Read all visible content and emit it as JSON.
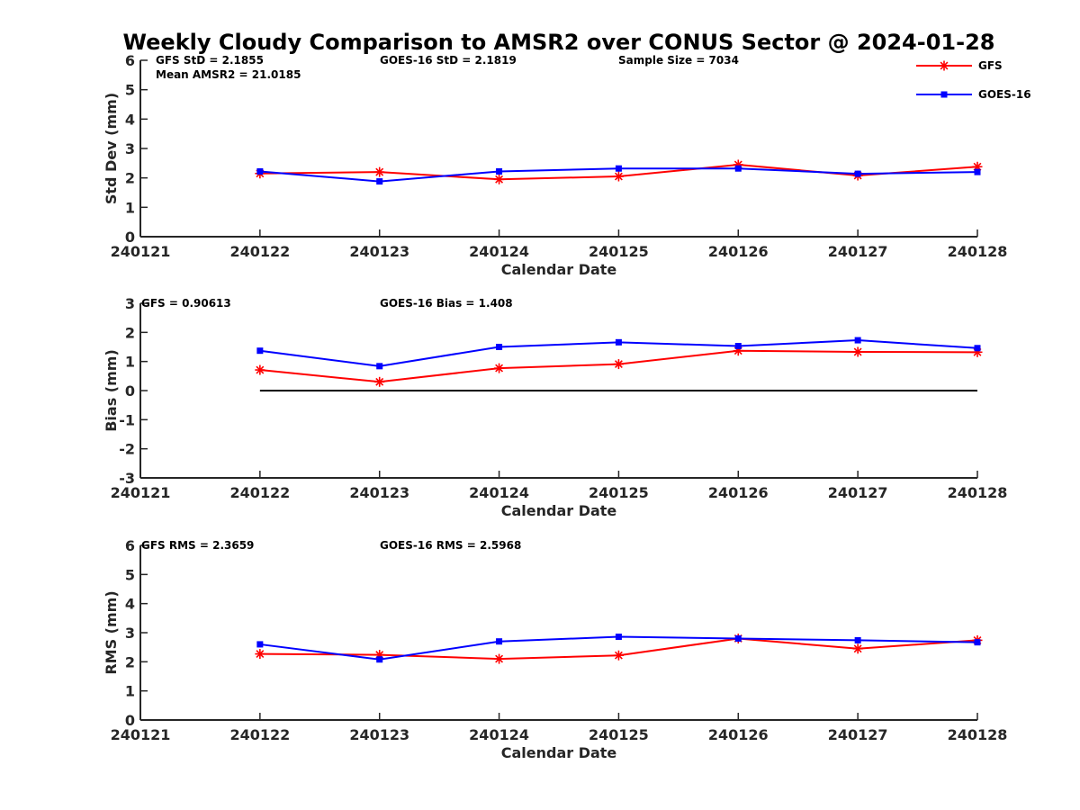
{
  "title": "Weekly Cloudy Comparison to AMSR2 over CONUS Sector @ 2024-01-28",
  "legend": {
    "placement": "top-right",
    "entries": [
      {
        "label": "GFS",
        "color": "#ff0000",
        "marker": "asterisk"
      },
      {
        "label": "GOES-16",
        "color": "#0000ff",
        "marker": "square"
      }
    ]
  },
  "chart_data": [
    {
      "type": "line",
      "title": "",
      "xlabel": "Calendar Date",
      "ylabel": "Std Dev (mm)",
      "categories": [
        "240121",
        "240122",
        "240123",
        "240124",
        "240125",
        "240126",
        "240127",
        "240128"
      ],
      "ylim": [
        0,
        6
      ],
      "yticks": [
        "0",
        "1",
        "2",
        "3",
        "4",
        "5",
        "6"
      ],
      "annotations": [
        "GFS StD = 2.1855",
        "Mean AMSR2 = 21.0185",
        "GOES-16 StD = 2.1819",
        "Sample Size = 7034"
      ],
      "series": [
        {
          "name": "GFS",
          "color": "#ff0000",
          "marker": "asterisk",
          "x": [
            "240122",
            "240123",
            "240124",
            "240125",
            "240126",
            "240127",
            "240128"
          ],
          "values": [
            2.15,
            2.2,
            1.95,
            2.05,
            2.45,
            2.08,
            2.38
          ]
        },
        {
          "name": "GOES-16",
          "color": "#0000ff",
          "marker": "square",
          "x": [
            "240122",
            "240123",
            "240124",
            "240125",
            "240126",
            "240127",
            "240128"
          ],
          "values": [
            2.22,
            1.88,
            2.22,
            2.32,
            2.32,
            2.14,
            2.2
          ]
        }
      ]
    },
    {
      "type": "line",
      "title": "",
      "xlabel": "Calendar Date",
      "ylabel": "Bias (mm)",
      "categories": [
        "240121",
        "240122",
        "240123",
        "240124",
        "240125",
        "240126",
        "240127",
        "240128"
      ],
      "ylim": [
        -3,
        3
      ],
      "yticks": [
        "-3",
        "-2",
        "-1",
        "0",
        "1",
        "2",
        "3"
      ],
      "zero_line": true,
      "annotations": [
        "GFS = 0.90613",
        "GOES-16 Bias  = 1.408"
      ],
      "series": [
        {
          "name": "GFS",
          "color": "#ff0000",
          "marker": "asterisk",
          "x": [
            "240122",
            "240123",
            "240124",
            "240125",
            "240126",
            "240127",
            "240128"
          ],
          "values": [
            0.71,
            0.3,
            0.77,
            0.91,
            1.37,
            1.33,
            1.32
          ]
        },
        {
          "name": "GOES-16",
          "color": "#0000ff",
          "marker": "square",
          "x": [
            "240122",
            "240123",
            "240124",
            "240125",
            "240126",
            "240127",
            "240128"
          ],
          "values": [
            1.37,
            0.84,
            1.5,
            1.66,
            1.53,
            1.73,
            1.46
          ]
        }
      ]
    },
    {
      "type": "line",
      "title": "",
      "xlabel": "Calendar Date",
      "ylabel": "RMS (mm)",
      "categories": [
        "240121",
        "240122",
        "240123",
        "240124",
        "240125",
        "240126",
        "240127",
        "240128"
      ],
      "ylim": [
        0,
        6
      ],
      "yticks": [
        "0",
        "1",
        "2",
        "3",
        "4",
        "5",
        "6"
      ],
      "annotations": [
        "GFS RMS = 2.3659",
        "GOES-16 RMS = 2.5968"
      ],
      "series": [
        {
          "name": "GFS",
          "color": "#ff0000",
          "marker": "asterisk",
          "x": [
            "240122",
            "240123",
            "240124",
            "240125",
            "240126",
            "240127",
            "240128"
          ],
          "values": [
            2.27,
            2.24,
            2.1,
            2.22,
            2.8,
            2.45,
            2.74
          ]
        },
        {
          "name": "GOES-16",
          "color": "#0000ff",
          "marker": "square",
          "x": [
            "240122",
            "240123",
            "240124",
            "240125",
            "240126",
            "240127",
            "240128"
          ],
          "values": [
            2.6,
            2.08,
            2.7,
            2.86,
            2.8,
            2.74,
            2.67
          ]
        }
      ]
    }
  ]
}
